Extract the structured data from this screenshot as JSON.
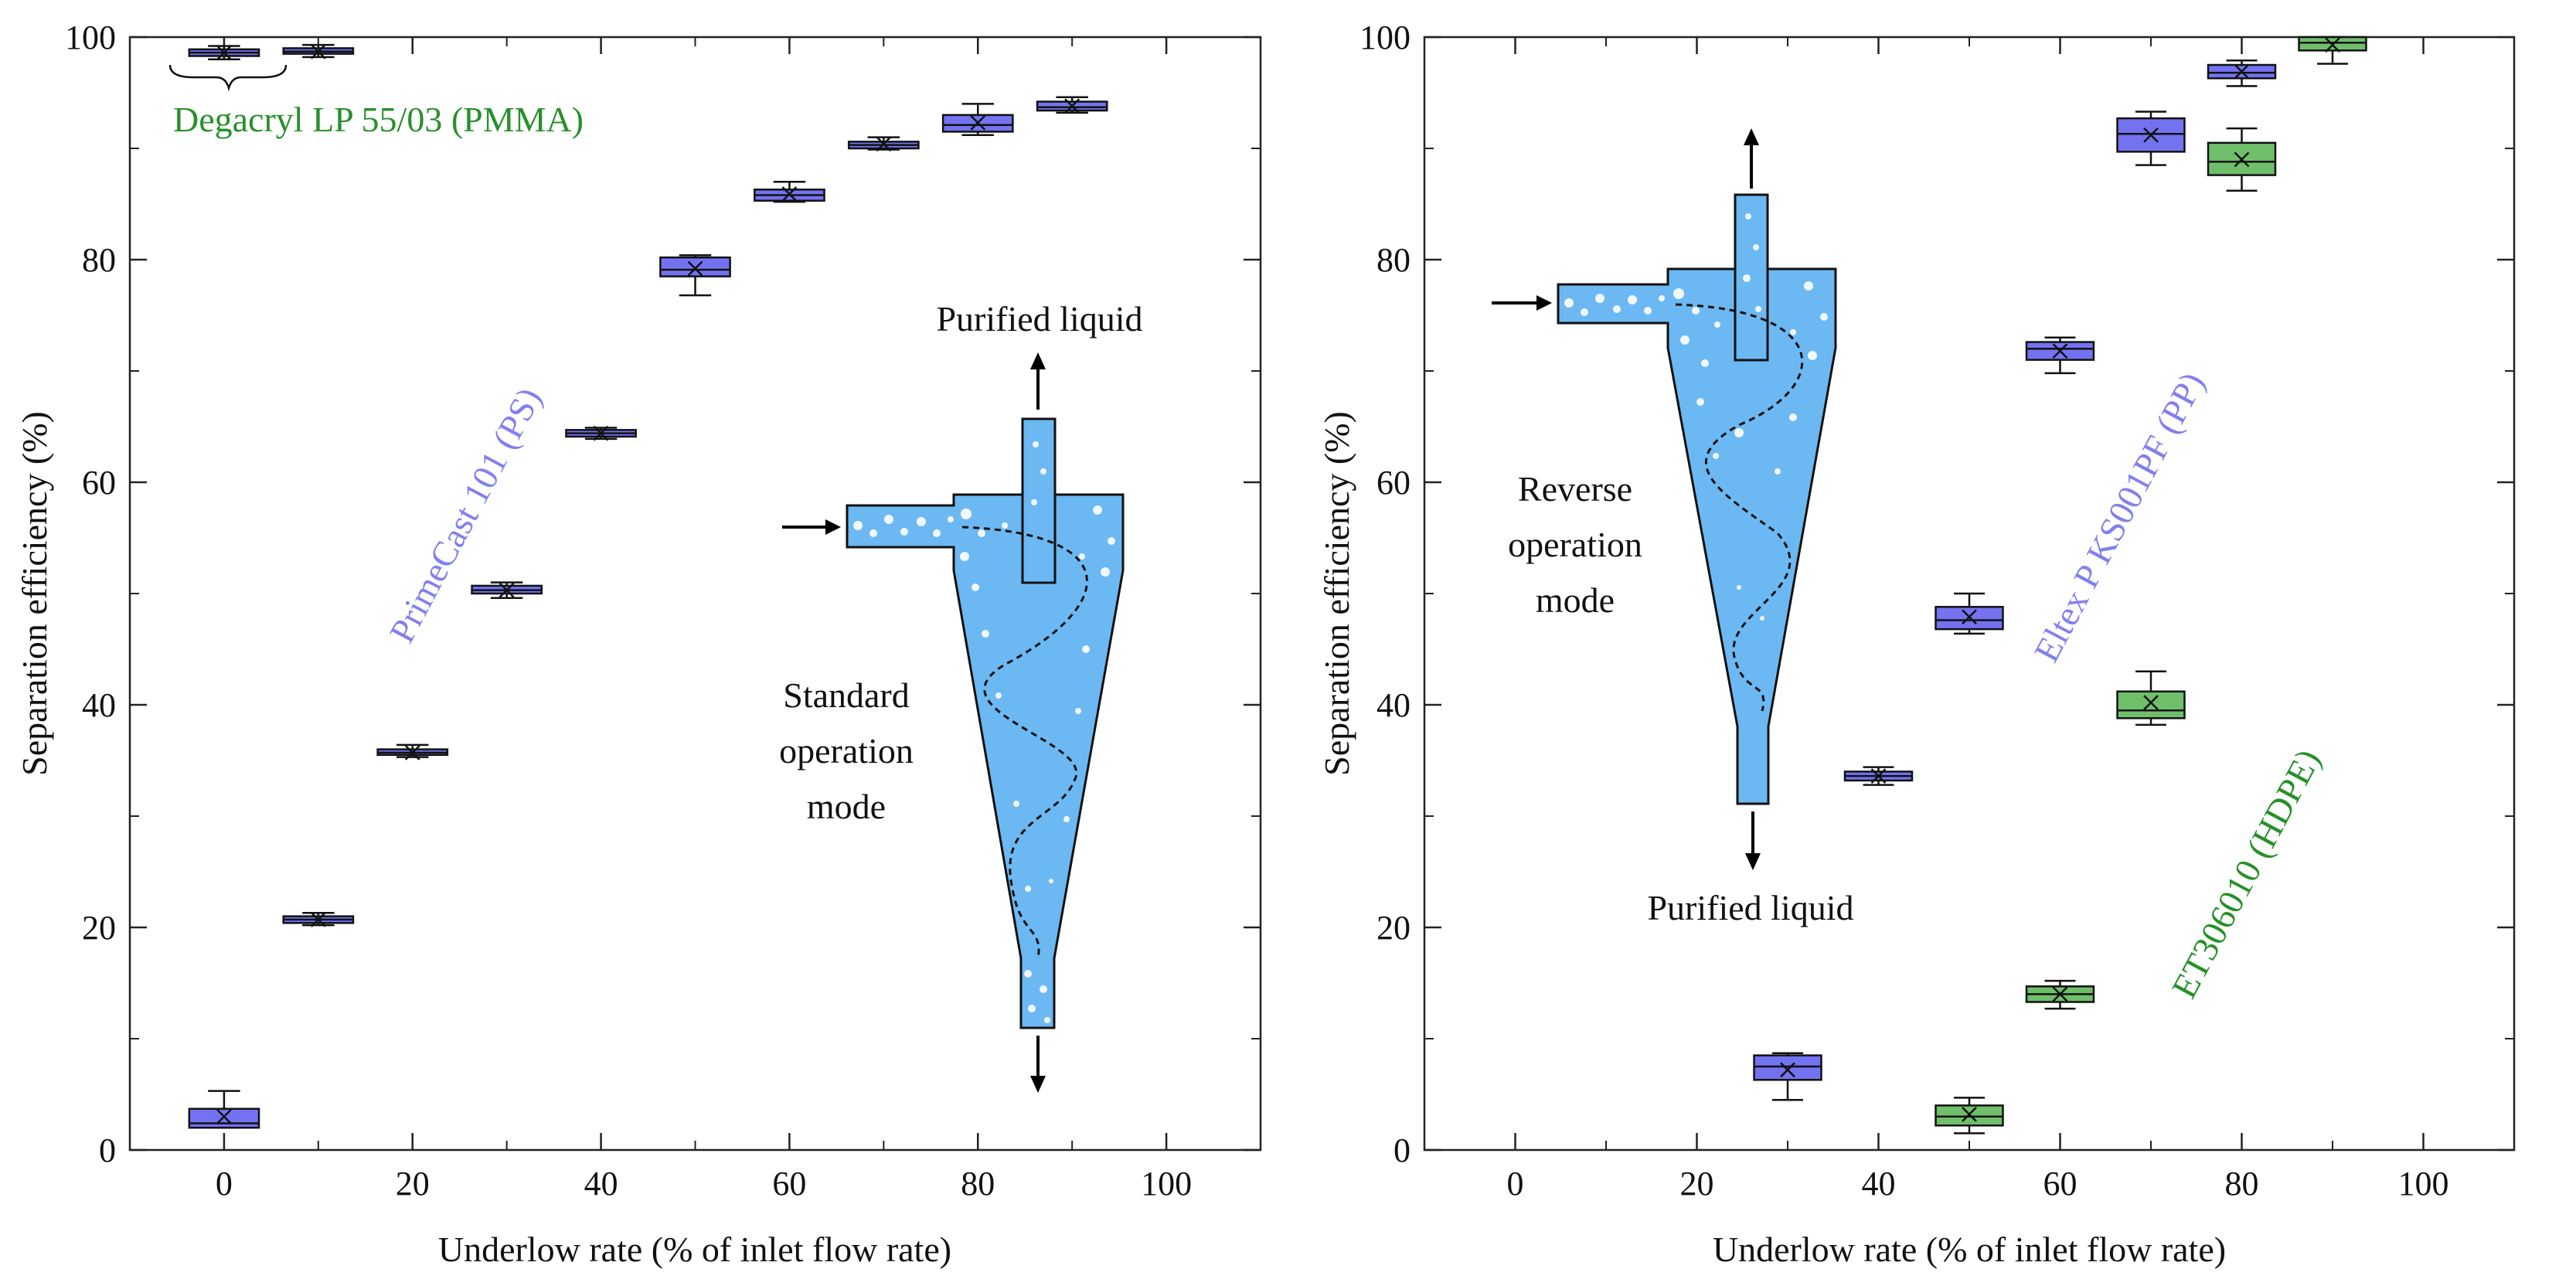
{
  "chart_data": [
    {
      "type": "box",
      "xlabel": "Underlow rate (% of inlet flow rate)",
      "ylabel": "Separation efficiency (%)",
      "xlim": [
        -10,
        110
      ],
      "ylim": [
        0,
        100
      ],
      "xticks": [
        "0",
        "20",
        "40",
        "60",
        "80",
        "100"
      ],
      "yticks": [
        "0",
        "20",
        "40",
        "60",
        "80",
        "100"
      ],
      "series": [
        {
          "name": "Degacryl LP 55/03 (PMMA)",
          "color": "#27902a",
          "fill": "#6f6ff2",
          "label_angle": 0,
          "boxes": [
            {
              "x": 0,
              "min": 98.0,
              "q1": 98.3,
              "median": 98.6,
              "q3": 98.9,
              "max": 99.2,
              "mean": 98.6
            },
            {
              "x": 10,
              "min": 98.2,
              "q1": 98.5,
              "median": 98.7,
              "q3": 99.0,
              "max": 99.3,
              "mean": 98.7
            }
          ]
        },
        {
          "name": "PrimeCast 101 (PS)",
          "color": "#8080f0",
          "fill": "#7373f2",
          "label_angle": -62,
          "boxes": [
            {
              "x": 0,
              "min": 2.0,
              "q1": 2.0,
              "median": 2.4,
              "q3": 3.7,
              "max": 5.3,
              "mean": 3.0
            },
            {
              "x": 10,
              "min": 20.2,
              "q1": 20.4,
              "median": 20.7,
              "q3": 21.0,
              "max": 21.3,
              "mean": 20.7
            },
            {
              "x": 20,
              "min": 35.3,
              "q1": 35.5,
              "median": 35.7,
              "q3": 36.0,
              "max": 36.4,
              "mean": 35.7
            },
            {
              "x": 30,
              "min": 49.6,
              "q1": 50.0,
              "median": 50.3,
              "q3": 50.7,
              "max": 51.0,
              "mean": 50.3
            },
            {
              "x": 40,
              "min": 63.9,
              "q1": 64.1,
              "median": 64.4,
              "q3": 64.7,
              "max": 64.9,
              "mean": 64.4
            },
            {
              "x": 50,
              "min": 76.8,
              "q1": 78.5,
              "median": 79.1,
              "q3": 80.2,
              "max": 80.4,
              "mean": 79.2
            },
            {
              "x": 60,
              "min": 85.2,
              "q1": 85.3,
              "median": 85.8,
              "q3": 86.3,
              "max": 87.0,
              "mean": 85.9
            },
            {
              "x": 70,
              "min": 89.9,
              "q1": 90.0,
              "median": 90.3,
              "q3": 90.6,
              "max": 91.0,
              "mean": 90.4
            },
            {
              "x": 80,
              "min": 91.2,
              "q1": 91.5,
              "median": 92.1,
              "q3": 93.0,
              "max": 94.0,
              "mean": 92.3
            },
            {
              "x": 90,
              "min": 93.2,
              "q1": 93.4,
              "median": 93.7,
              "q3": 94.2,
              "max": 94.6,
              "mean": 93.8
            }
          ]
        }
      ],
      "annotations": {
        "mode": "Standard operation mode",
        "mode_lines": [
          "Standard",
          "operation",
          "mode"
        ],
        "outlet": "Purified liquid"
      }
    },
    {
      "type": "box",
      "xlabel": "Underlow rate (% of inlet flow rate)",
      "ylabel": "Separation efficiency (%)",
      "xlim": [
        -10,
        110
      ],
      "ylim": [
        0,
        100
      ],
      "xticks": [
        "0",
        "20",
        "40",
        "60",
        "80",
        "100"
      ],
      "yticks": [
        "0",
        "20",
        "40",
        "60",
        "80",
        "100"
      ],
      "series": [
        {
          "name": "Eltex P KS001PF (PP)",
          "color": "#8080f0",
          "fill": "#7373f2",
          "label_angle": -62,
          "boxes": [
            {
              "x": 30,
              "min": 4.5,
              "q1": 6.3,
              "median": 7.5,
              "q3": 8.5,
              "max": 8.7,
              "mean": 7.2
            },
            {
              "x": 40,
              "min": 32.8,
              "q1": 33.2,
              "median": 33.6,
              "q3": 34.0,
              "max": 34.4,
              "mean": 33.6
            },
            {
              "x": 50,
              "min": 46.4,
              "q1": 46.8,
              "median": 47.6,
              "q3": 48.8,
              "max": 50.0,
              "mean": 47.9
            },
            {
              "x": 60,
              "min": 69.8,
              "q1": 71.0,
              "median": 72.0,
              "q3": 72.6,
              "max": 73.0,
              "mean": 71.8
            },
            {
              "x": 70,
              "min": 88.5,
              "q1": 89.7,
              "median": 91.3,
              "q3": 92.7,
              "max": 93.3,
              "mean": 91.2
            },
            {
              "x": 80,
              "min": 95.6,
              "q1": 96.3,
              "median": 96.8,
              "q3": 97.5,
              "max": 97.9,
              "mean": 96.9
            }
          ]
        },
        {
          "name": "ET306010 (HDPE)",
          "color": "#27902a",
          "fill": "#6fbf6a",
          "label_angle": -62,
          "boxes": [
            {
              "x": 50,
              "min": 1.5,
              "q1": 2.2,
              "median": 3.0,
              "q3": 4.0,
              "max": 4.7,
              "mean": 3.2
            },
            {
              "x": 60,
              "min": 12.7,
              "q1": 13.3,
              "median": 14.0,
              "q3": 14.7,
              "max": 15.2,
              "mean": 14.0
            },
            {
              "x": 70,
              "min": 38.2,
              "q1": 38.8,
              "median": 39.5,
              "q3": 41.2,
              "max": 43.0,
              "mean": 40.2
            },
            {
              "x": 80,
              "min": 86.2,
              "q1": 87.6,
              "median": 88.8,
              "q3": 90.5,
              "max": 91.8,
              "mean": 89.0
            },
            {
              "x": 90,
              "min": 97.6,
              "q1": 98.8,
              "median": 99.5,
              "q3": 100.0,
              "max": 100.0,
              "mean": 99.3
            }
          ]
        }
      ],
      "annotations": {
        "mode": "Reverse operation mode",
        "mode_lines": [
          "Reverse",
          "operation",
          "mode"
        ],
        "outlet": "Purified liquid"
      }
    }
  ]
}
